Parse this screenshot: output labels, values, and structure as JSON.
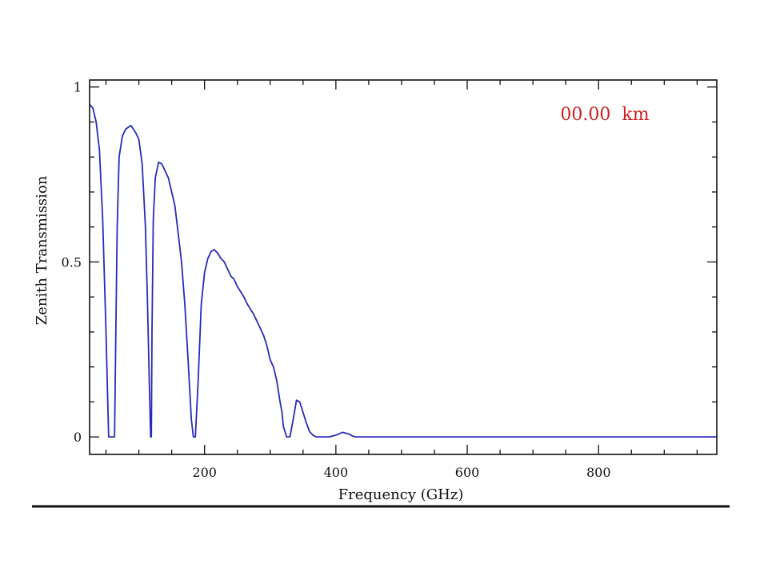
{
  "chart_data": {
    "type": "line",
    "title": "",
    "xlabel": "Frequency (GHz)",
    "ylabel": "Zenith Transmission",
    "xlim": [
      25,
      980
    ],
    "ylim": [
      -0.05,
      1.02
    ],
    "x_ticks": [
      200,
      400,
      600,
      800
    ],
    "x_tick_labels": [
      "200",
      "400",
      "600",
      "800"
    ],
    "y_ticks": [
      0,
      0.5,
      1
    ],
    "y_tick_labels": [
      "0",
      "0.5",
      "1"
    ],
    "annotation": {
      "text": "00.00  km",
      "color": "#cc1f1f"
    },
    "grid": false,
    "legend": "none",
    "series": [
      {
        "color": "#2a2ab8",
        "x": [
          25,
          30,
          35,
          40,
          45,
          50,
          54,
          57,
          60,
          63,
          65,
          67,
          70,
          75,
          80,
          88,
          95,
          100,
          105,
          110,
          113,
          116,
          118,
          119,
          120,
          122,
          125,
          130,
          135,
          140,
          145,
          150,
          155,
          160,
          165,
          170,
          175,
          180,
          183,
          186,
          190,
          195,
          200,
          205,
          210,
          215,
          220,
          225,
          230,
          235,
          240,
          245,
          250,
          255,
          260,
          265,
          270,
          275,
          280,
          285,
          290,
          295,
          300,
          305,
          310,
          315,
          318,
          320,
          325,
          330,
          335,
          340,
          345,
          350,
          355,
          360,
          365,
          370,
          380,
          390,
          400,
          410,
          420,
          425,
          430,
          440,
          500,
          600,
          700,
          800,
          900,
          980
        ],
        "y": [
          0.95,
          0.94,
          0.9,
          0.82,
          0.62,
          0.3,
          0,
          0,
          0,
          0,
          0.3,
          0.6,
          0.8,
          0.86,
          0.88,
          0.89,
          0.87,
          0.85,
          0.78,
          0.6,
          0.4,
          0.15,
          0,
          0,
          0.3,
          0.62,
          0.74,
          0.785,
          0.78,
          0.76,
          0.74,
          0.7,
          0.66,
          0.58,
          0.5,
          0.38,
          0.22,
          0.05,
          0,
          0,
          0.15,
          0.38,
          0.47,
          0.51,
          0.53,
          0.535,
          0.525,
          0.51,
          0.5,
          0.48,
          0.46,
          0.45,
          0.43,
          0.415,
          0.4,
          0.38,
          0.365,
          0.35,
          0.33,
          0.31,
          0.29,
          0.26,
          0.22,
          0.2,
          0.16,
          0.1,
          0.07,
          0.03,
          0,
          0,
          0.05,
          0.105,
          0.1,
          0.07,
          0.04,
          0.015,
          0.005,
          0,
          0,
          0,
          0.005,
          0.013,
          0.008,
          0.003,
          0,
          0,
          0,
          0,
          0,
          0,
          0,
          0
        ]
      }
    ]
  }
}
